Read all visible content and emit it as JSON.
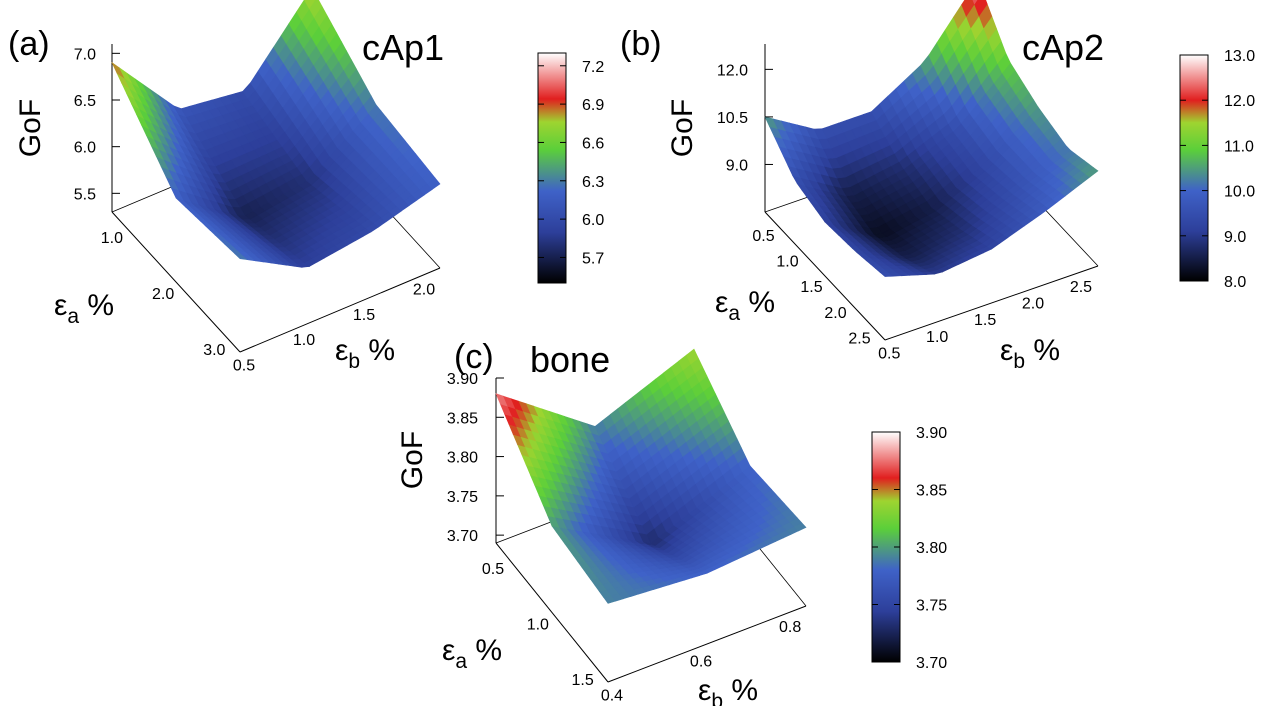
{
  "panels": [
    {
      "id": "a",
      "panel_label": "(a)",
      "title": "cAp1",
      "zlabel": "GoF",
      "alabel": {
        "sym": "ε",
        "sub": "a",
        "unit": "%"
      },
      "blabel": {
        "sym": "ε",
        "sub": "b",
        "unit": "%"
      },
      "z_ticks": [
        "7.0",
        "6.5",
        "6.0",
        "5.5"
      ],
      "a_ticks": [
        "1.0",
        "2.0",
        "3.0"
      ],
      "b_ticks": [
        "0.5",
        "1.0",
        "1.5",
        "2.0"
      ],
      "colorbar": {
        "min": 5.5,
        "max": 7.3,
        "ticks": [
          "7.2",
          "6.9",
          "6.6",
          "6.3",
          "6.0",
          "5.7"
        ]
      }
    },
    {
      "id": "b",
      "panel_label": "(b)",
      "title": "cAp2",
      "zlabel": "GoF",
      "alabel": {
        "sym": "ε",
        "sub": "a",
        "unit": "%"
      },
      "blabel": {
        "sym": "ε",
        "sub": "b",
        "unit": "%"
      },
      "z_ticks": [
        "12.0",
        "10.5",
        "9.0"
      ],
      "a_ticks": [
        "0.5",
        "1.0",
        "1.5",
        "2.0",
        "2.5"
      ],
      "b_ticks": [
        "0.5",
        "1.0",
        "1.5",
        "2.0",
        "2.5"
      ],
      "colorbar": {
        "min": 8.0,
        "max": 13.0,
        "ticks": [
          "13.0",
          "12.0",
          "11.0",
          "10.0",
          "9.0",
          "8.0"
        ]
      }
    },
    {
      "id": "c",
      "panel_label": "(c)",
      "title": "bone",
      "zlabel": "GoF",
      "alabel": {
        "sym": "ε",
        "sub": "a",
        "unit": "%"
      },
      "blabel": {
        "sym": "ε",
        "sub": "b",
        "unit": "%"
      },
      "z_ticks": [
        "3.90",
        "3.85",
        "3.80",
        "3.75",
        "3.70"
      ],
      "a_ticks": [
        "0.5",
        "1.0",
        "1.5"
      ],
      "b_ticks": [
        "0.4",
        "0.6",
        "0.8"
      ],
      "colorbar": {
        "min": 3.7,
        "max": 3.9,
        "ticks": [
          "3.90",
          "3.85",
          "3.80",
          "3.75",
          "3.70"
        ]
      }
    }
  ],
  "colors": {
    "low": "#000000",
    "mid_low": "#2d3f9a",
    "mid": "#3f62c8",
    "mid_high": "#5bcf3a",
    "high": "#e11f1f",
    "top": "#ffffff"
  },
  "chart_data": [
    {
      "type": "heatmap",
      "title": "cAp1",
      "xlabel": "εb %",
      "ylabel": "εa %",
      "zlabel": "GoF",
      "x": [
        0.5,
        1.0,
        1.5,
        2.0
      ],
      "y": [
        1.0,
        2.0,
        3.0
      ],
      "z": [
        [
          6.9,
          6.1,
          6.0,
          6.8
        ],
        [
          6.2,
          5.7,
          5.8,
          6.3
        ],
        [
          6.3,
          5.9,
          6.0,
          6.2
        ]
      ],
      "zlim": [
        5.3,
        7.1
      ],
      "colorbar_range": [
        5.5,
        7.3
      ],
      "grid": false
    },
    {
      "type": "heatmap",
      "title": "cAp2",
      "xlabel": "εb %",
      "ylabel": "εa %",
      "zlabel": "GoF",
      "x": [
        0.5,
        1.0,
        1.5,
        2.0,
        2.5
      ],
      "y": [
        0.5,
        1.0,
        1.5,
        2.0,
        2.5
      ],
      "z": [
        [
          10.5,
          9.5,
          9.5,
          10.5,
          12.5
        ],
        [
          9.5,
          8.5,
          8.8,
          9.5,
          11.0
        ],
        [
          9.2,
          8.2,
          8.5,
          9.3,
          10.5
        ],
        [
          9.3,
          8.5,
          8.8,
          9.5,
          10.2
        ],
        [
          9.5,
          9.0,
          9.2,
          9.8,
          10.5
        ]
      ],
      "zlim": [
        7.5,
        12.8
      ],
      "colorbar_range": [
        8.0,
        13.0
      ],
      "grid": false
    },
    {
      "type": "heatmap",
      "title": "bone",
      "xlabel": "εb %",
      "ylabel": "εa %",
      "zlabel": "GoF",
      "x": [
        0.4,
        0.6,
        0.8
      ],
      "y": [
        0.5,
        1.0,
        1.5
      ],
      "z": [
        [
          3.88,
          3.79,
          3.84
        ],
        [
          3.8,
          3.73,
          3.78
        ],
        [
          3.79,
          3.78,
          3.79
        ]
      ],
      "zlim": [
        3.69,
        3.9
      ],
      "colorbar_range": [
        3.7,
        3.9
      ],
      "grid": false
    }
  ]
}
